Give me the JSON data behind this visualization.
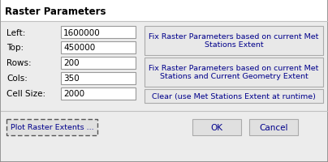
{
  "title": "Raster Parameters",
  "title_fontsize": 8.5,
  "bg_color": "#f0f0f0",
  "dialog_bg": "#ffffff",
  "header_bg": "#ffffff",
  "text_color": "#000000",
  "label_color": "#000000",
  "button_text_color": "#00008B",
  "labels": [
    "Left:",
    "Top:",
    "Rows:",
    "Cols:",
    "Cell Size:"
  ],
  "values": [
    "1600000",
    "450000",
    "200",
    "350",
    "2000"
  ],
  "buttons_right": [
    "Fix Raster Parameters based on current Met\nStations Extent",
    "Fix Raster Parameters based on current Met\nStations and Current Geometry Extent",
    "Clear (use Met Stations Extent at runtime)"
  ],
  "button_bottom_left": "Plot Raster Extents ...",
  "button_ok": "OK",
  "button_cancel": "Cancel",
  "input_bg": "#ffffff",
  "font_family": "DejaVu Sans"
}
